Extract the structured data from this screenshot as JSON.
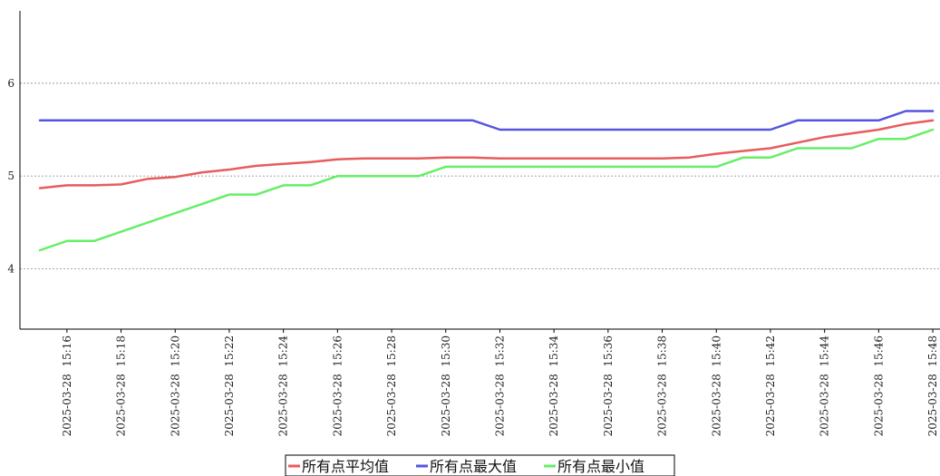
{
  "chart_data": {
    "type": "line",
    "title": "",
    "xlabel": "",
    "ylabel": "",
    "x": [
      "2025-03-28 15:15",
      "2025-03-28 15:16",
      "2025-03-28 15:17",
      "2025-03-28 15:18",
      "2025-03-28 15:19",
      "2025-03-28 15:20",
      "2025-03-28 15:21",
      "2025-03-28 15:22",
      "2025-03-28 15:23",
      "2025-03-28 15:24",
      "2025-03-28 15:25",
      "2025-03-28 15:26",
      "2025-03-28 15:27",
      "2025-03-28 15:28",
      "2025-03-28 15:29",
      "2025-03-28 15:30",
      "2025-03-28 15:31",
      "2025-03-28 15:32",
      "2025-03-28 15:33",
      "2025-03-28 15:34",
      "2025-03-28 15:35",
      "2025-03-28 15:36",
      "2025-03-28 15:37",
      "2025-03-28 15:38",
      "2025-03-28 15:39",
      "2025-03-28 15:40",
      "2025-03-28 15:41",
      "2025-03-28 15:42",
      "2025-03-28 15:43",
      "2025-03-28 15:44",
      "2025-03-28 15:45",
      "2025-03-28 15:46",
      "2025-03-28 15:47",
      "2025-03-28 15:48"
    ],
    "x_tick_labels": [
      "2025-03-28  15:16",
      "2025-03-28  15:18",
      "2025-03-28  15:20",
      "2025-03-28  15:22",
      "2025-03-28  15:24",
      "2025-03-28  15:26",
      "2025-03-28  15:28",
      "2025-03-28  15:30",
      "2025-03-28  15:32",
      "2025-03-28  15:34",
      "2025-03-28  15:36",
      "2025-03-28  15:38",
      "2025-03-28  15:40",
      "2025-03-28  15:42",
      "2025-03-28  15:44",
      "2025-03-28  15:46",
      "2025-03-28  15:48"
    ],
    "y_ticks": [
      4,
      5,
      6
    ],
    "ylim": [
      3.35,
      6.78
    ],
    "grid": "horizontal dotted",
    "legend_position": "bottom-center",
    "series": [
      {
        "name": "所有点平均值",
        "color": "#e85c5c",
        "values": [
          4.87,
          4.9,
          4.9,
          4.91,
          4.97,
          4.99,
          5.04,
          5.07,
          5.11,
          5.13,
          5.15,
          5.18,
          5.19,
          5.19,
          5.19,
          5.2,
          5.2,
          5.19,
          5.19,
          5.19,
          5.19,
          5.19,
          5.19,
          5.19,
          5.2,
          5.24,
          5.27,
          5.3,
          5.36,
          5.42,
          5.46,
          5.5,
          5.56,
          5.6
        ]
      },
      {
        "name": "所有点最大值",
        "color": "#5555e0",
        "values": [
          5.6,
          5.6,
          5.6,
          5.6,
          5.6,
          5.6,
          5.6,
          5.6,
          5.6,
          5.6,
          5.6,
          5.6,
          5.6,
          5.6,
          5.6,
          5.6,
          5.6,
          5.5,
          5.5,
          5.5,
          5.5,
          5.5,
          5.5,
          5.5,
          5.5,
          5.5,
          5.5,
          5.5,
          5.6,
          5.6,
          5.6,
          5.6,
          5.7,
          5.7
        ]
      },
      {
        "name": "所有点最小值",
        "color": "#66ee66",
        "values": [
          4.2,
          4.3,
          4.3,
          4.4,
          4.5,
          4.6,
          4.7,
          4.8,
          4.8,
          4.9,
          4.9,
          5.0,
          5.0,
          5.0,
          5.0,
          5.1,
          5.1,
          5.1,
          5.1,
          5.1,
          5.1,
          5.1,
          5.1,
          5.1,
          5.1,
          5.1,
          5.2,
          5.2,
          5.3,
          5.3,
          5.3,
          5.4,
          5.4,
          5.5
        ]
      }
    ]
  }
}
